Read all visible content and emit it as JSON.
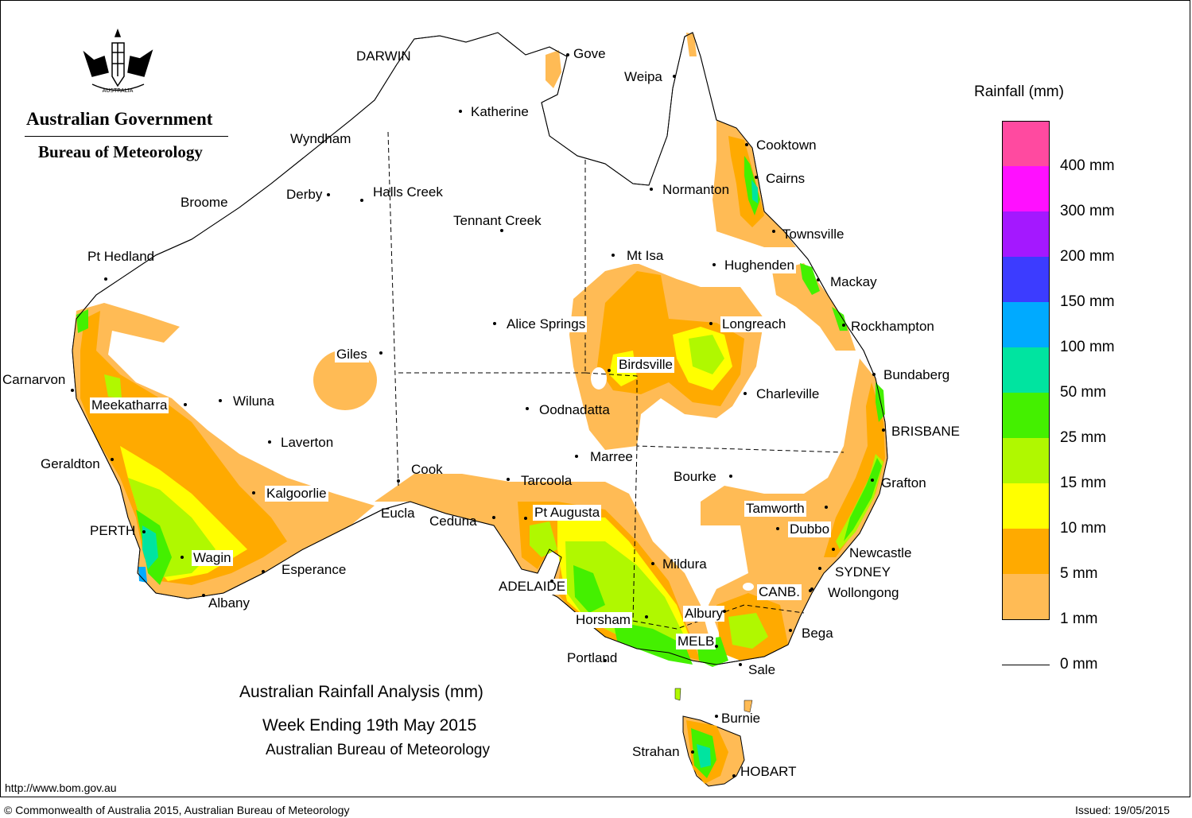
{
  "agency": {
    "line1": "Australian Government",
    "line2": "Bureau of Meteorology",
    "crest_motto": "AUSTRALIA"
  },
  "title": {
    "line1": "Australian Rainfall Analysis (mm)",
    "line2": "Week Ending 19th May 2015",
    "line3": "Australian Bureau of Meteorology"
  },
  "legend": {
    "title": "Rainfall (mm)",
    "bands": [
      {
        "label": "400 mm",
        "color": "#ff4aa0"
      },
      {
        "label": "300 mm",
        "color": "#ff10ff"
      },
      {
        "label": "200 mm",
        "color": "#a418ff"
      },
      {
        "label": "150 mm",
        "color": "#3c3cff"
      },
      {
        "label": "100 mm",
        "color": "#00aaff"
      },
      {
        "label": "50 mm",
        "color": "#00e4a0"
      },
      {
        "label": "25 mm",
        "color": "#44f000"
      },
      {
        "label": "15 mm",
        "color": "#b0f800"
      },
      {
        "label": "10 mm",
        "color": "#ffff00"
      },
      {
        "label": "5 mm",
        "color": "#ffaa00"
      },
      {
        "label": "1 mm",
        "color": "#ffbb55"
      },
      {
        "label": "0 mm",
        "color": "#ffffff"
      }
    ]
  },
  "cities": [
    {
      "id": "darwin",
      "name": "DARWIN"
    },
    {
      "id": "gove",
      "name": "Gove"
    },
    {
      "id": "weipa",
      "name": "Weipa"
    },
    {
      "id": "katherine",
      "name": "Katherine"
    },
    {
      "id": "wyndham",
      "name": "Wyndham"
    },
    {
      "id": "cooktown",
      "name": "Cooktown"
    },
    {
      "id": "cairns",
      "name": "Cairns"
    },
    {
      "id": "normanton",
      "name": "Normanton"
    },
    {
      "id": "derby",
      "name": "Derby"
    },
    {
      "id": "halls-creek",
      "name": "Halls Creek"
    },
    {
      "id": "broome",
      "name": "Broome"
    },
    {
      "id": "tennant-creek",
      "name": "Tennant Creek"
    },
    {
      "id": "townsville",
      "name": "Townsville"
    },
    {
      "id": "pt-hedland",
      "name": "Pt Hedland"
    },
    {
      "id": "mt-isa",
      "name": "Mt Isa"
    },
    {
      "id": "hughenden",
      "name": "Hughenden"
    },
    {
      "id": "mackay",
      "name": "Mackay"
    },
    {
      "id": "alice-springs",
      "name": "Alice Springs"
    },
    {
      "id": "longreach",
      "name": "Longreach"
    },
    {
      "id": "rockhampton",
      "name": "Rockhampton"
    },
    {
      "id": "giles",
      "name": "Giles"
    },
    {
      "id": "birdsville",
      "name": "Birdsville"
    },
    {
      "id": "bundaberg",
      "name": "Bundaberg"
    },
    {
      "id": "carnarvon",
      "name": "Carnarvon"
    },
    {
      "id": "charleville",
      "name": "Charleville"
    },
    {
      "id": "meekatharra",
      "name": "Meekatharra"
    },
    {
      "id": "wiluna",
      "name": "Wiluna"
    },
    {
      "id": "oodnadatta",
      "name": "Oodnadatta"
    },
    {
      "id": "brisbane",
      "name": "BRISBANE"
    },
    {
      "id": "laverton",
      "name": "Laverton"
    },
    {
      "id": "marree",
      "name": "Marree"
    },
    {
      "id": "geraldton",
      "name": "Geraldton"
    },
    {
      "id": "cook",
      "name": "Cook"
    },
    {
      "id": "bourke",
      "name": "Bourke"
    },
    {
      "id": "tarcoola",
      "name": "Tarcoola"
    },
    {
      "id": "grafton",
      "name": "Grafton"
    },
    {
      "id": "kalgoorlie",
      "name": "Kalgoorlie"
    },
    {
      "id": "tamworth",
      "name": "Tamworth"
    },
    {
      "id": "pt-augusta",
      "name": "Pt Augusta"
    },
    {
      "id": "eucla",
      "name": "Eucla"
    },
    {
      "id": "ceduna",
      "name": "Ceduna"
    },
    {
      "id": "dubbo",
      "name": "Dubbo"
    },
    {
      "id": "perth",
      "name": "PERTH"
    },
    {
      "id": "newcastle",
      "name": "Newcastle"
    },
    {
      "id": "wagin",
      "name": "Wagin"
    },
    {
      "id": "mildura",
      "name": "Mildura"
    },
    {
      "id": "esperance",
      "name": "Esperance"
    },
    {
      "id": "sydney",
      "name": "SYDNEY"
    },
    {
      "id": "adelaide",
      "name": "ADELAIDE"
    },
    {
      "id": "canberra",
      "name": "CANB."
    },
    {
      "id": "wollongong",
      "name": "Wollongong"
    },
    {
      "id": "albany",
      "name": "Albany"
    },
    {
      "id": "albury",
      "name": "Albury"
    },
    {
      "id": "horsham",
      "name": "Horsham"
    },
    {
      "id": "bega",
      "name": "Bega"
    },
    {
      "id": "melbourne",
      "name": "MELB"
    },
    {
      "id": "portland",
      "name": "Portland"
    },
    {
      "id": "sale",
      "name": "Sale"
    },
    {
      "id": "burnie",
      "name": "Burnie"
    },
    {
      "id": "strahan",
      "name": "Strahan"
    },
    {
      "id": "hobart",
      "name": "HOBART"
    }
  ],
  "footer": {
    "url": "http://www.bom.gov.au",
    "copyright": "© Commonwealth of Australia 2015, Australian Bureau of Meteorology",
    "issued": "Issued: 19/05/2015"
  }
}
